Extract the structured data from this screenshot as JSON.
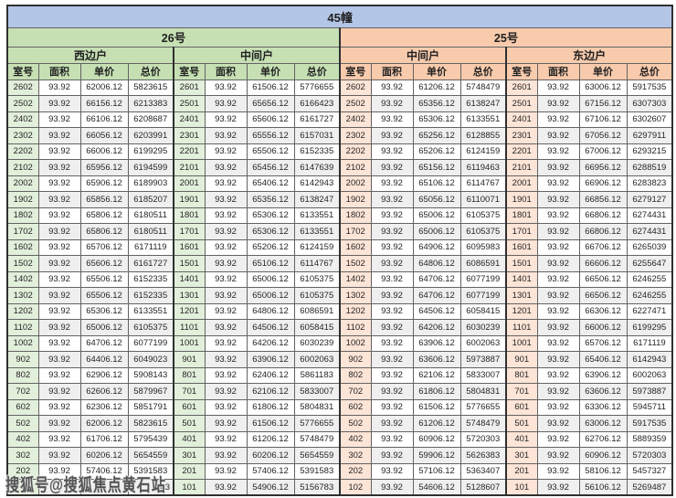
{
  "page_title": "45幢",
  "watermark_text": "搜狐号@搜狐焦点黄石站",
  "buildings": [
    {
      "name": "26号",
      "unit_types": [
        "西边户",
        "中间户"
      ]
    },
    {
      "name": "25号",
      "unit_types": [
        "中间户",
        "东边户"
      ]
    }
  ],
  "column_headers": [
    "室号",
    "面积",
    "单价",
    "总价"
  ],
  "colors": {
    "title_bg": "#b4c6e7",
    "building_26_bg": "#c6e0b4",
    "building_26_room_bg": "#e2efda",
    "building_25_bg": "#f8cbad",
    "building_25_room_bg": "#fce4d6",
    "alt_row_bg": "#efefef",
    "border": "#636363"
  },
  "rows": [
    [
      "2602",
      "93.92",
      "62006.12",
      "5823615",
      "2601",
      "93.92",
      "61506.12",
      "5776655",
      "2602",
      "93.92",
      "61206.12",
      "5748479",
      "2601",
      "93.92",
      "63006.12",
      "5917535"
    ],
    [
      "2502",
      "93.92",
      "66156.12",
      "6213383",
      "2501",
      "93.92",
      "65656.12",
      "6166423",
      "2502",
      "93.92",
      "65356.12",
      "6138247",
      "2501",
      "93.92",
      "67156.12",
      "6307303"
    ],
    [
      "2402",
      "93.92",
      "66106.12",
      "6208687",
      "2401",
      "93.92",
      "65606.12",
      "6161727",
      "2402",
      "93.92",
      "65306.12",
      "6133551",
      "2401",
      "93.92",
      "67106.12",
      "6302607"
    ],
    [
      "2302",
      "93.92",
      "66056.12",
      "6203991",
      "2301",
      "93.92",
      "65556.12",
      "6157031",
      "2302",
      "93.92",
      "65256.12",
      "6128855",
      "2301",
      "93.92",
      "67056.12",
      "6297911"
    ],
    [
      "2202",
      "93.92",
      "66006.12",
      "6199295",
      "2201",
      "93.92",
      "65506.12",
      "6152335",
      "2202",
      "93.92",
      "65206.12",
      "6124159",
      "2201",
      "93.92",
      "67006.12",
      "6293215"
    ],
    [
      "2102",
      "93.92",
      "65956.12",
      "6194599",
      "2101",
      "93.92",
      "65456.12",
      "6147639",
      "2102",
      "93.92",
      "65156.12",
      "6119463",
      "2101",
      "93.92",
      "66956.12",
      "6288519"
    ],
    [
      "2002",
      "93.92",
      "65906.12",
      "6189903",
      "2001",
      "93.92",
      "65406.12",
      "6142943",
      "2002",
      "93.92",
      "65106.12",
      "6114767",
      "2001",
      "93.92",
      "66906.12",
      "6283823"
    ],
    [
      "1902",
      "93.92",
      "65856.12",
      "6185207",
      "1901",
      "93.92",
      "65356.12",
      "6138247",
      "1902",
      "93.92",
      "65056.12",
      "6110071",
      "1901",
      "93.92",
      "66856.12",
      "6279127"
    ],
    [
      "1802",
      "93.92",
      "65806.12",
      "6180511",
      "1801",
      "93.92",
      "65306.12",
      "6133551",
      "1802",
      "93.92",
      "65006.12",
      "6105375",
      "1801",
      "93.92",
      "66806.12",
      "6274431"
    ],
    [
      "1702",
      "93.92",
      "65806.12",
      "6180511",
      "1701",
      "93.92",
      "65306.12",
      "6133551",
      "1702",
      "93.92",
      "65006.12",
      "6105375",
      "1701",
      "93.92",
      "66806.12",
      "6274431"
    ],
    [
      "1602",
      "93.92",
      "65706.12",
      "6171119",
      "1601",
      "93.92",
      "65206.12",
      "6124159",
      "1602",
      "93.92",
      "64906.12",
      "6095983",
      "1601",
      "93.92",
      "66706.12",
      "6265039"
    ],
    [
      "1502",
      "93.92",
      "65606.12",
      "6161727",
      "1501",
      "93.92",
      "65106.12",
      "6114767",
      "1502",
      "93.92",
      "64806.12",
      "6086591",
      "1501",
      "93.92",
      "66606.12",
      "6255647"
    ],
    [
      "1402",
      "93.92",
      "65506.12",
      "6152335",
      "1401",
      "93.92",
      "65006.12",
      "6105375",
      "1402",
      "93.92",
      "64706.12",
      "6077199",
      "1401",
      "93.92",
      "66506.12",
      "6246255"
    ],
    [
      "1302",
      "93.92",
      "65506.12",
      "6152335",
      "1301",
      "93.92",
      "65006.12",
      "6105375",
      "1302",
      "93.92",
      "64706.12",
      "6077199",
      "1301",
      "93.92",
      "66506.12",
      "6246255"
    ],
    [
      "1202",
      "93.92",
      "65306.12",
      "6133551",
      "1201",
      "93.92",
      "64806.12",
      "6086591",
      "1202",
      "93.92",
      "64506.12",
      "6058415",
      "1201",
      "93.92",
      "66306.12",
      "6227471"
    ],
    [
      "1102",
      "93.92",
      "65006.12",
      "6105375",
      "1101",
      "93.92",
      "64506.12",
      "6058415",
      "1102",
      "93.92",
      "64206.12",
      "6030239",
      "1101",
      "93.92",
      "66006.12",
      "6199295"
    ],
    [
      "1002",
      "93.92",
      "64706.12",
      "6077199",
      "1001",
      "93.92",
      "64206.12",
      "6030239",
      "1002",
      "93.92",
      "63906.12",
      "6002063",
      "1001",
      "93.92",
      "65706.12",
      "6171119"
    ],
    [
      "902",
      "93.92",
      "64406.12",
      "6049023",
      "901",
      "93.92",
      "63906.12",
      "6002063",
      "902",
      "93.92",
      "63606.12",
      "5973887",
      "901",
      "93.92",
      "65406.12",
      "6142943"
    ],
    [
      "802",
      "93.92",
      "62906.12",
      "5908143",
      "801",
      "93.92",
      "62406.12",
      "5861183",
      "802",
      "93.92",
      "62106.12",
      "5833007",
      "801",
      "93.92",
      "63906.12",
      "6002063"
    ],
    [
      "702",
      "93.92",
      "62606.12",
      "5879967",
      "701",
      "93.92",
      "62106.12",
      "5833007",
      "702",
      "93.92",
      "61806.12",
      "5804831",
      "701",
      "93.92",
      "63606.12",
      "5973887"
    ],
    [
      "602",
      "93.92",
      "62306.12",
      "5851791",
      "601",
      "93.92",
      "61806.12",
      "5804831",
      "602",
      "93.92",
      "61506.12",
      "5776655",
      "601",
      "93.92",
      "63306.12",
      "5945711"
    ],
    [
      "502",
      "93.92",
      "62006.12",
      "5823615",
      "501",
      "93.92",
      "61506.12",
      "5776655",
      "502",
      "93.92",
      "61206.12",
      "5748479",
      "501",
      "93.92",
      "63006.12",
      "5917535"
    ],
    [
      "402",
      "93.92",
      "61706.12",
      "5795439",
      "401",
      "93.92",
      "61206.12",
      "5748479",
      "402",
      "93.92",
      "60906.12",
      "5720303",
      "401",
      "93.92",
      "62706.12",
      "5889359"
    ],
    [
      "302",
      "93.92",
      "60206.12",
      "5654559",
      "301",
      "93.92",
      "60206.12",
      "5654559",
      "302",
      "93.92",
      "59906.12",
      "5626383",
      "301",
      "93.92",
      "60906.12",
      "5720303"
    ],
    [
      "202",
      "93.92",
      "57406.12",
      "5391583",
      "201",
      "93.92",
      "57406.12",
      "5391583",
      "202",
      "93.92",
      "57106.12",
      "5363407",
      "201",
      "93.92",
      "58106.12",
      "5457327"
    ],
    [
      "",
      "",
      "",
      "743",
      "101",
      "93.92",
      "54906.12",
      "5156783",
      "102",
      "93.92",
      "54606.12",
      "5128607",
      "101",
      "93.92",
      "56106.12",
      "5269487"
    ]
  ]
}
